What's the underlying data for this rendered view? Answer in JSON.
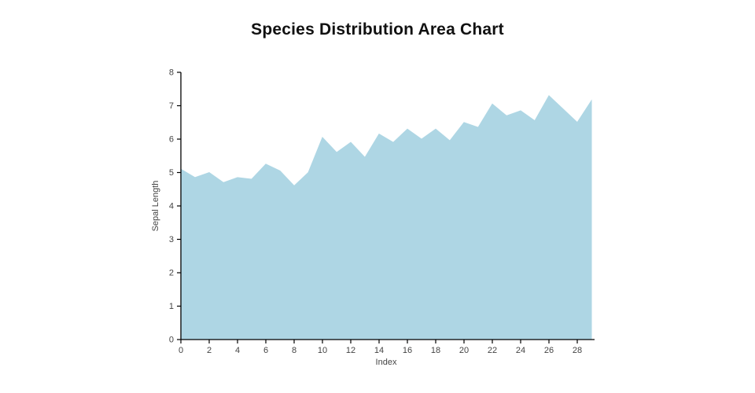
{
  "chart_data": {
    "type": "area",
    "title": "Species Distribution Area Chart",
    "xlabel": "Index",
    "ylabel": "Sepal Length",
    "x": [
      0,
      1,
      2,
      3,
      4,
      5,
      6,
      7,
      8,
      9,
      10,
      11,
      12,
      13,
      14,
      15,
      16,
      17,
      18,
      19,
      20,
      21,
      22,
      23,
      24,
      25,
      26,
      27,
      28,
      29
    ],
    "values": [
      5.1,
      4.85,
      5.0,
      4.7,
      4.85,
      4.8,
      5.25,
      5.05,
      4.6,
      5.0,
      6.05,
      5.6,
      5.9,
      5.45,
      6.15,
      5.9,
      6.3,
      6.0,
      6.3,
      5.95,
      6.5,
      6.35,
      7.05,
      6.7,
      6.85,
      6.55,
      7.3,
      6.9,
      6.5,
      7.15
    ],
    "xlim": [
      0,
      29
    ],
    "ylim": [
      0,
      8
    ],
    "xticks": [
      0,
      2,
      4,
      6,
      8,
      10,
      12,
      14,
      16,
      18,
      20,
      22,
      24,
      26,
      28
    ],
    "yticks": [
      0,
      1,
      2,
      3,
      4,
      5,
      6,
      7,
      8
    ],
    "fill_color": "#aed6e4",
    "axis_color": "#000000",
    "tick_text_color": "#444444",
    "background_color": "#ffffff",
    "grid": false,
    "legend": "none"
  }
}
